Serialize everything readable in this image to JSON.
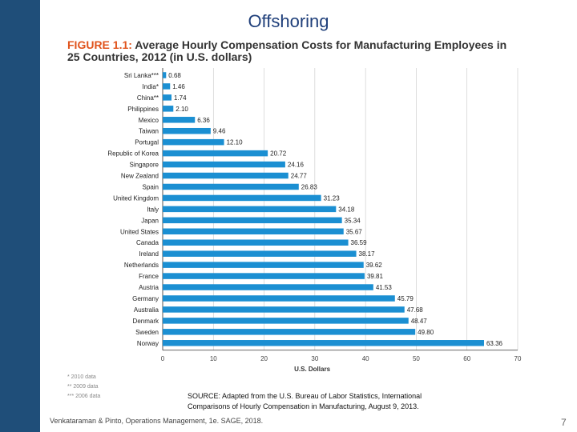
{
  "slide": {
    "title": "Offshoring",
    "citation": "Venkataraman & Pinto, Operations Management, 1e. SAGE, 2018.",
    "page_number": "7",
    "source_line1": "SOURCE: Adapted from the U.S. Bureau of Labor Statistics, International",
    "source_line2": "Comparisons of Hourly Compensation in Manufacturing, August 9, 2013."
  },
  "figure": {
    "label": "FIGURE 1.1:",
    "title_line1": "Average Hourly Compensation Costs for Manufacturing Employees in",
    "title_line2": "25 Countries, 2012 (in U.S. dollars)",
    "footnotes": [
      "* 2010 data",
      "** 2009 data",
      "*** 2006 data"
    ]
  },
  "colors": {
    "bar": "#1b8fd2",
    "side_bar": "#1f4e79",
    "title": "#1f3f7a",
    "figure_label": "#e0531c"
  },
  "chart_data": {
    "type": "bar",
    "orientation": "horizontal",
    "categories": [
      "Sri Lanka***",
      "India*",
      "China**",
      "Philippines",
      "Mexico",
      "Taiwan",
      "Portugal",
      "Republic of Korea",
      "Singapore",
      "New Zealand",
      "Spain",
      "United Kingdom",
      "Italy",
      "Japan",
      "United States",
      "Canada",
      "Ireland",
      "Netherlands",
      "France",
      "Austria",
      "Germany",
      "Australia",
      "Denmark",
      "Sweden",
      "Norway"
    ],
    "values": [
      0.68,
      1.46,
      1.74,
      2.1,
      6.36,
      9.46,
      12.1,
      20.72,
      24.16,
      24.77,
      26.83,
      31.23,
      34.18,
      35.34,
      35.67,
      36.59,
      38.17,
      39.62,
      39.81,
      41.53,
      45.79,
      47.68,
      48.47,
      49.8,
      63.36
    ],
    "value_labels": [
      "0.68",
      "1.46",
      "1.74",
      "2.10",
      "6.36",
      "9.46",
      "12.10",
      "20.72",
      "24.16",
      "24.77",
      "26.83",
      "31.23",
      "34.18",
      "35.34",
      "35.67",
      "36.59",
      "38.17",
      "39.62",
      "39.81",
      "41.53",
      "45.79",
      "47.68",
      "48.47",
      "49.80",
      "63.36"
    ],
    "xlabel": "U.S. Dollars",
    "xlim": [
      0,
      70
    ],
    "xticks": [
      0,
      10,
      20,
      30,
      40,
      50,
      60,
      70
    ],
    "grid": true
  }
}
